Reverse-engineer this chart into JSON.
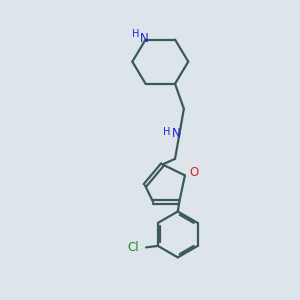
{
  "background_color": "#dde5ea",
  "bond_color": "#3a5a5a",
  "N_color": "#2020dd",
  "O_color": "#dd2020",
  "Cl_color": "#228822",
  "line_width": 1.6,
  "fig_size": [
    3.0,
    3.0
  ],
  "dpi": 100,
  "xlim": [
    0,
    10
  ],
  "ylim": [
    0,
    10
  ]
}
